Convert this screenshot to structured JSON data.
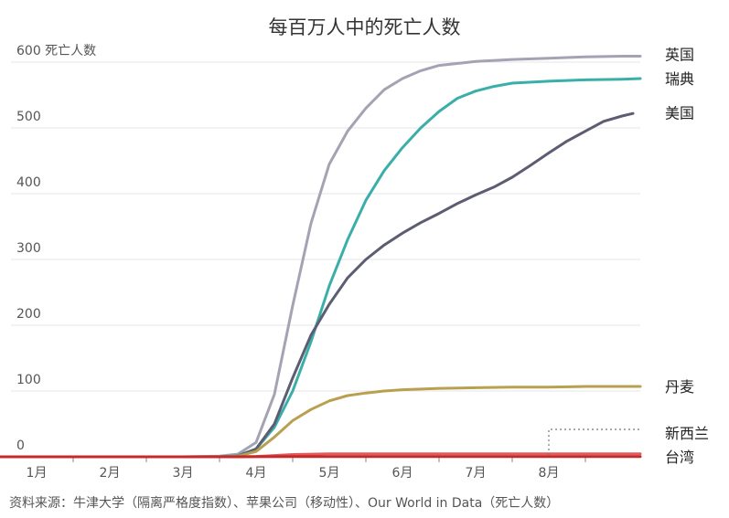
{
  "title": "每百万人中的死亡人数",
  "source": "资料来源：牛津大学（隔离严格度指数）、苹果公司（移动性）、Our World in Data（死亡人数）",
  "chart_data": {
    "type": "line",
    "title": "每百万人中的死亡人数",
    "ylabel": "死亡人数",
    "ylim": [
      0,
      600
    ],
    "yticks": [
      0,
      100,
      200,
      300,
      400,
      500,
      600
    ],
    "ytick_labels": [
      "0",
      "100",
      "200",
      "300",
      "400",
      "500",
      "600 死亡人数"
    ],
    "xlim": [
      0,
      8.75
    ],
    "xticks": [
      0.5,
      1.5,
      2.5,
      3.5,
      4.5,
      5.5,
      6.5,
      7.5
    ],
    "xtick_labels": [
      "1月",
      "2月",
      "3月",
      "4月",
      "5月",
      "6月",
      "7月",
      "8月"
    ],
    "grid": true,
    "legend": "none",
    "series": [
      {
        "name": "英国",
        "color": "#a3a3b4",
        "points": [
          [
            0,
            0
          ],
          [
            2.5,
            0
          ],
          [
            3,
            1
          ],
          [
            3.25,
            4
          ],
          [
            3.5,
            22
          ],
          [
            3.75,
            95
          ],
          [
            4,
            230
          ],
          [
            4.25,
            355
          ],
          [
            4.5,
            445
          ],
          [
            4.75,
            495
          ],
          [
            5,
            530
          ],
          [
            5.25,
            558
          ],
          [
            5.5,
            575
          ],
          [
            5.75,
            587
          ],
          [
            6,
            595
          ],
          [
            6.5,
            601
          ],
          [
            7,
            604
          ],
          [
            7.5,
            606
          ],
          [
            8,
            608
          ],
          [
            8.5,
            609
          ],
          [
            8.75,
            609
          ]
        ]
      },
      {
        "name": "瑞典",
        "color": "#3aafa9",
        "points": [
          [
            0,
            0
          ],
          [
            2.5,
            0
          ],
          [
            3,
            0
          ],
          [
            3.25,
            2
          ],
          [
            3.5,
            12
          ],
          [
            3.75,
            45
          ],
          [
            4,
            100
          ],
          [
            4.25,
            175
          ],
          [
            4.5,
            260
          ],
          [
            4.75,
            330
          ],
          [
            5,
            390
          ],
          [
            5.25,
            435
          ],
          [
            5.5,
            470
          ],
          [
            5.75,
            500
          ],
          [
            6,
            525
          ],
          [
            6.25,
            545
          ],
          [
            6.5,
            556
          ],
          [
            6.75,
            563
          ],
          [
            7,
            568
          ],
          [
            7.5,
            571
          ],
          [
            8,
            573
          ],
          [
            8.5,
            574
          ],
          [
            8.75,
            575
          ]
        ]
      },
      {
        "name": "美国",
        "color": "#5c5c72",
        "points": [
          [
            0,
            0
          ],
          [
            2.5,
            0
          ],
          [
            3,
            0
          ],
          [
            3.25,
            1
          ],
          [
            3.5,
            12
          ],
          [
            3.75,
            50
          ],
          [
            4,
            120
          ],
          [
            4.25,
            185
          ],
          [
            4.5,
            232
          ],
          [
            4.75,
            272
          ],
          [
            5,
            300
          ],
          [
            5.25,
            322
          ],
          [
            5.5,
            340
          ],
          [
            5.75,
            356
          ],
          [
            6,
            370
          ],
          [
            6.25,
            385
          ],
          [
            6.5,
            398
          ],
          [
            6.75,
            410
          ],
          [
            7,
            425
          ],
          [
            7.25,
            443
          ],
          [
            7.5,
            462
          ],
          [
            7.75,
            480
          ],
          [
            8,
            495
          ],
          [
            8.25,
            510
          ],
          [
            8.5,
            518
          ],
          [
            8.65,
            522
          ]
        ]
      },
      {
        "name": "丹麦",
        "color": "#b8a04f",
        "points": [
          [
            0,
            0
          ],
          [
            2.5,
            0
          ],
          [
            3,
            0
          ],
          [
            3.25,
            1
          ],
          [
            3.5,
            8
          ],
          [
            3.75,
            30
          ],
          [
            4,
            55
          ],
          [
            4.25,
            72
          ],
          [
            4.5,
            85
          ],
          [
            4.75,
            93
          ],
          [
            5,
            97
          ],
          [
            5.25,
            100
          ],
          [
            5.5,
            102
          ],
          [
            6,
            104
          ],
          [
            6.5,
            105
          ],
          [
            7,
            106
          ],
          [
            7.5,
            106
          ],
          [
            8,
            107
          ],
          [
            8.5,
            107
          ],
          [
            8.75,
            107
          ]
        ]
      },
      {
        "name": "新西兰",
        "color": "#e45a5a",
        "points": [
          [
            0,
            0
          ],
          [
            3,
            0
          ],
          [
            3.5,
            0.5
          ],
          [
            3.75,
            2
          ],
          [
            4,
            3.5
          ],
          [
            4.5,
            4.5
          ],
          [
            5,
            4.5
          ],
          [
            6,
            4.5
          ],
          [
            7,
            4.5
          ],
          [
            8,
            4.5
          ],
          [
            8.75,
            4.5
          ]
        ]
      },
      {
        "name": "台湾",
        "color": "#c42a2a",
        "points": [
          [
            0,
            0
          ],
          [
            3,
            0
          ],
          [
            3.5,
            0.1
          ],
          [
            4,
            0.3
          ],
          [
            5,
            0.3
          ],
          [
            6,
            0.3
          ],
          [
            7,
            0.3
          ],
          [
            8,
            0.3
          ],
          [
            8.75,
            0.3
          ]
        ]
      }
    ],
    "end_labels": [
      {
        "text": "英国",
        "y": 612
      },
      {
        "text": "瑞典",
        "y": 575
      },
      {
        "text": "美国",
        "y": 523
      },
      {
        "text": "丹麦",
        "y": 107
      },
      {
        "text": "新西兰",
        "y": 36
      },
      {
        "text": "台湾",
        "y": 0
      }
    ]
  }
}
